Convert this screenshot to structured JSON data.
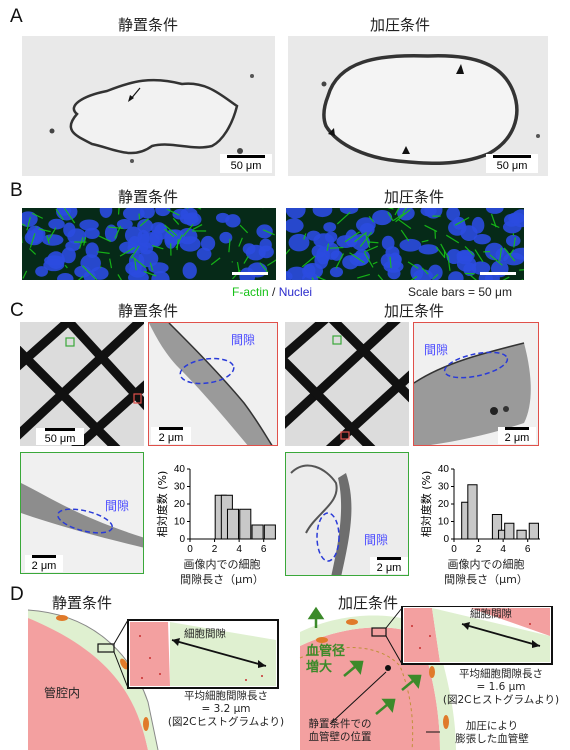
{
  "panelA": {
    "letter": "A",
    "static_title": "静置条件",
    "pressure_title": "加圧条件",
    "scalebar_left": "50 μm",
    "scalebar_right": "50 μm"
  },
  "panelB": {
    "letter": "B",
    "static_title": "静置条件",
    "pressure_title": "加圧条件",
    "legend_factin": "F-actin",
    "legend_sep": " / ",
    "legend_nuclei": "Nuclei",
    "scale_note": "Scale bars = 50 μm",
    "colors": {
      "factin": "#17c117",
      "nuclei": "#2a2acc"
    }
  },
  "panelC": {
    "letter": "C",
    "static_title": "静置条件",
    "pressure_title": "加圧条件",
    "gap_label": "間隙",
    "scale_50": "50 μm",
    "scale_2": "2 μm",
    "ylabel": "相対度数 (%)",
    "xlabel_line1": "画像内での細胞",
    "xlabel_line2": "間隙長さ（μm）",
    "colors": {
      "red_frame": "#e0504a",
      "green_frame": "#3aa83a",
      "gap_outline": "#2a3bd8"
    }
  },
  "panelD": {
    "letter": "D",
    "static_title": "静置条件",
    "pressure_title": "加圧条件",
    "lumen": "管腔内",
    "gap_left": "細胞間隙",
    "gap_right": "細胞間隙",
    "avg_left_1": "平均細胞間隙長さ",
    "avg_left_2": "= 3.2 μm",
    "avg_left_3": "(図2Cヒストグラムより)",
    "avg_right_1": "平均細胞間隙長さ",
    "avg_right_2": "= 1.6 μm",
    "avg_right_3": "(図2Cヒストグラムより)",
    "dilation_1": "血管径",
    "dilation_2": "増大",
    "static_wall_1": "静置条件での",
    "static_wall_2": "血管壁の位置",
    "expanded_1": "加圧により",
    "expanded_2": "膨張した血管壁",
    "colors": {
      "lumen": "#f3a0a0",
      "wall": "#dff0d0",
      "arrow": "#3c8a2a"
    }
  },
  "chart_data": [
    {
      "type": "bar",
      "title": "",
      "xlabel": "画像内での細胞間隙長さ（μm）",
      "ylabel": "相対度数 (%)",
      "x": [
        1.5,
        2.5,
        3.0,
        3.5,
        4.5,
        5.5,
        6.5
      ],
      "values": [
        0,
        25,
        25,
        17,
        17,
        8,
        8
      ],
      "xlim": [
        0,
        7
      ],
      "ylim": [
        0,
        40
      ],
      "xticks": [
        0,
        2,
        4,
        6
      ],
      "yticks": [
        0,
        10,
        20,
        30,
        40
      ],
      "bar_width": 0.9,
      "condition": "静置条件"
    },
    {
      "type": "bar",
      "title": "",
      "xlabel": "画像内での細胞間隙長さ（μm）",
      "ylabel": "相対度数 (%)",
      "x": [
        0.5,
        1.0,
        1.5,
        2.0,
        3.5,
        4.0,
        4.5,
        5.5,
        6.5
      ],
      "values": [
        0,
        21,
        31,
        0,
        14,
        5,
        9,
        5,
        9
      ],
      "xlim": [
        0,
        7
      ],
      "ylim": [
        0,
        40
      ],
      "xticks": [
        0,
        2,
        4,
        6
      ],
      "yticks": [
        0,
        10,
        20,
        30,
        40
      ],
      "bar_width": 0.75,
      "condition": "加圧条件"
    }
  ]
}
